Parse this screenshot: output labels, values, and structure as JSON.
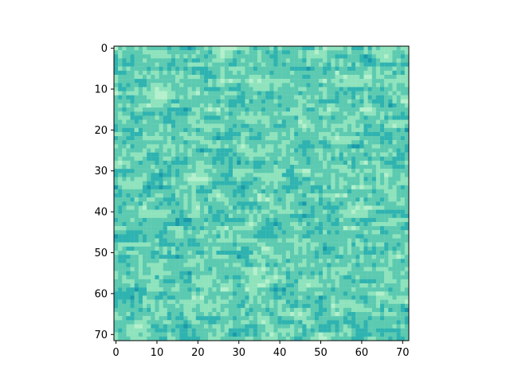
{
  "chart_data": {
    "type": "heatmap",
    "title": "",
    "xlabel": "",
    "ylabel": "",
    "rows": 72,
    "cols": 72,
    "xlim": [
      -0.5,
      71.5
    ],
    "ylim": [
      71.5,
      -0.5
    ],
    "x_ticks": [
      0,
      10,
      20,
      30,
      40,
      50,
      60,
      70
    ],
    "y_ticks": [
      0,
      10,
      20,
      30,
      40,
      50,
      60,
      70
    ],
    "x_tick_labels": [
      "0",
      "10",
      "20",
      "30",
      "40",
      "50",
      "60",
      "70"
    ],
    "y_tick_labels": [
      "0",
      "10",
      "20",
      "30",
      "40",
      "50",
      "60",
      "70"
    ],
    "grid": false,
    "legend": "none",
    "palette": [
      "#1a9aa8",
      "#2fb3b0",
      "#5ccab0",
      "#8ee3bd",
      "#b4f0cc"
    ],
    "colors": {
      "axis": "#000000",
      "background": "#ffffff"
    }
  }
}
